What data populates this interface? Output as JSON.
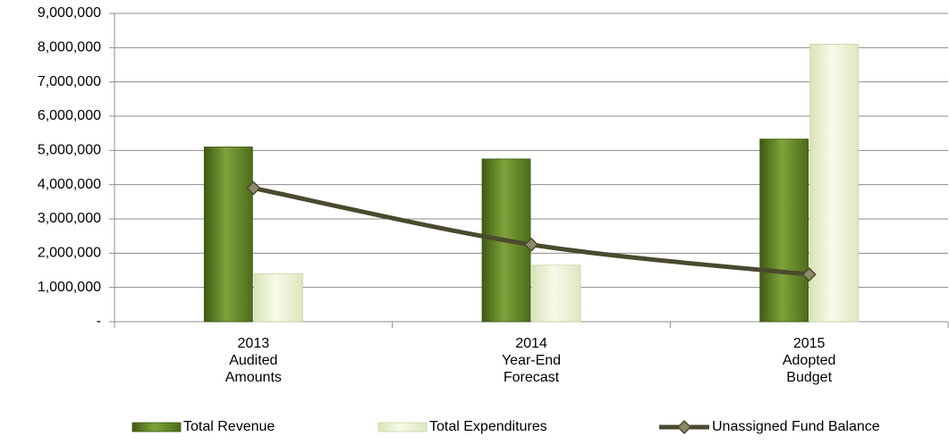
{
  "chart_data": {
    "type": "bar",
    "categories": [
      "2013\nAudited\nAmounts",
      "2014\nYear-End\nForecast",
      "2015\nAdopted\nBudget"
    ],
    "series": [
      {
        "name": "Total Revenue",
        "type": "bar",
        "color": "#5f8226",
        "values": [
          5100000,
          4750000,
          5330000
        ]
      },
      {
        "name": "Total Expenditures",
        "type": "bar",
        "color": "#eef4d8",
        "values": [
          1400000,
          1650000,
          8100000
        ]
      },
      {
        "name": "Unassigned Fund Balance",
        "type": "line",
        "color": "#4a4a2e",
        "values": [
          3900000,
          2250000,
          1380000
        ]
      }
    ],
    "ylim": [
      0,
      9000000
    ],
    "yticks": [
      {
        "value": 0,
        "label": "-"
      },
      {
        "value": 1000000,
        "label": "1,000,000"
      },
      {
        "value": 2000000,
        "label": "2,000,000"
      },
      {
        "value": 3000000,
        "label": "3,000,000"
      },
      {
        "value": 4000000,
        "label": "4,000,000"
      },
      {
        "value": 5000000,
        "label": "5,000,000"
      },
      {
        "value": 6000000,
        "label": "6,000,000"
      },
      {
        "value": 7000000,
        "label": "7,000,000"
      },
      {
        "value": 8000000,
        "label": "8,000,000"
      },
      {
        "value": 9000000,
        "label": "9,000,000"
      }
    ],
    "grid": true,
    "legend": "bottom"
  }
}
